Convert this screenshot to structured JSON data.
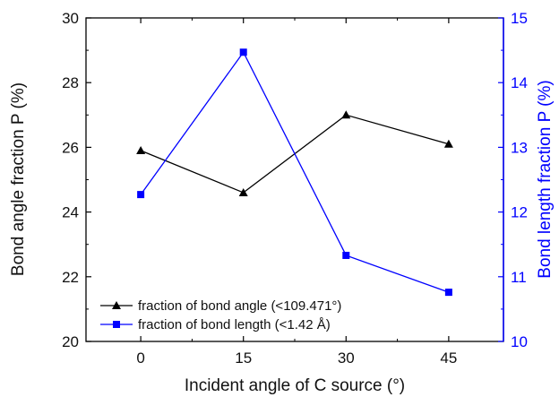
{
  "chart_data": {
    "type": "line",
    "xlabel": "Incident angle of C source (°)",
    "ylabel": "Bond angle fraction P (%)",
    "y2label": "Bond length fraction P (%)",
    "x": [
      0,
      15,
      30,
      45
    ],
    "x_ticks": [
      "0",
      "15",
      "30",
      "45"
    ],
    "xlim": [
      -8,
      53
    ],
    "ylim": [
      20,
      30
    ],
    "y_ticks": [
      "20",
      "22",
      "24",
      "26",
      "28",
      "30"
    ],
    "y2lim": [
      10,
      15
    ],
    "y2_ticks": [
      "10",
      "11",
      "12",
      "13",
      "14",
      "15"
    ],
    "legend_position": "bottom-left",
    "series": [
      {
        "name": "fraction of bond angle (<109.471°)",
        "axis": "left",
        "color": "#000000",
        "marker": "triangle",
        "values": [
          25.9,
          24.6,
          27.0,
          26.1
        ]
      },
      {
        "name": "fraction of bond length (<1.42 Å)",
        "axis": "right",
        "color": "#0000ff",
        "marker": "square",
        "values": [
          12.27,
          14.47,
          11.33,
          10.76
        ]
      }
    ]
  }
}
